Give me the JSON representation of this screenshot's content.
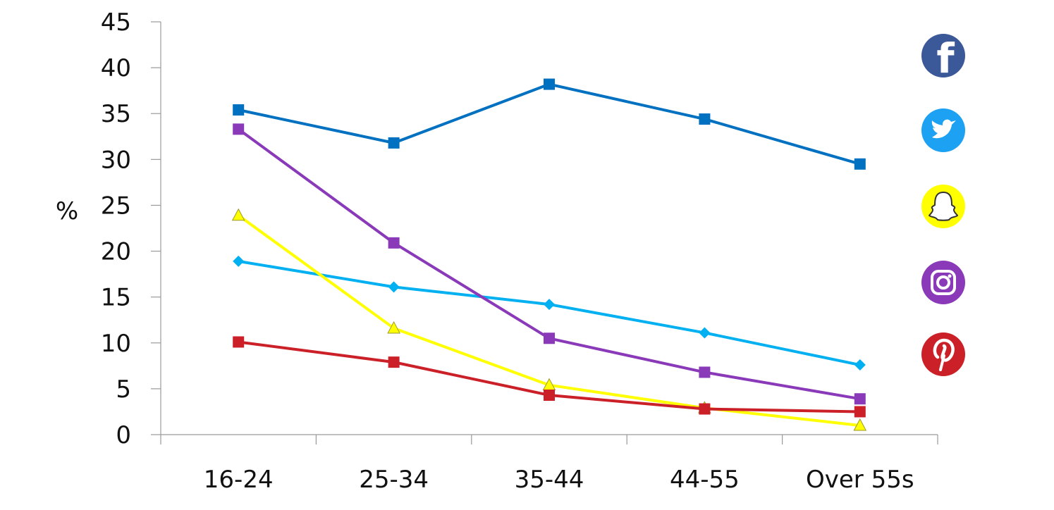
{
  "chart_data": {
    "type": "line",
    "categories": [
      "16-24",
      "25-34",
      "35-44",
      "44-55",
      "Over 55s"
    ],
    "ylabel": "%",
    "ylim": [
      0,
      45
    ],
    "yticks": [
      0,
      5,
      10,
      15,
      20,
      25,
      30,
      35,
      40,
      45
    ],
    "grid": false,
    "legend": "right (brand icons)",
    "series": [
      {
        "icon": "facebook-icon",
        "color": "#0070c0",
        "marker": "square",
        "values": [
          35.4,
          31.8,
          38.2,
          34.4,
          29.5
        ]
      },
      {
        "icon": "twitter-icon",
        "color": "#00b0f0",
        "marker": "diamond",
        "values": [
          18.9,
          16.1,
          14.2,
          11.1,
          7.6
        ]
      },
      {
        "icon": "snapchat-icon",
        "color": "#ffff00",
        "marker": "triangle",
        "values": [
          23.9,
          11.6,
          5.4,
          2.9,
          1.0
        ]
      },
      {
        "icon": "instagram-icon",
        "color": "#8a3ab9",
        "marker": "square",
        "values": [
          33.3,
          20.9,
          10.5,
          6.8,
          3.9
        ]
      },
      {
        "icon": "pinterest-icon",
        "color": "#cb2027",
        "marker": "square",
        "values": [
          10.1,
          7.9,
          4.3,
          2.8,
          2.5
        ]
      }
    ]
  }
}
